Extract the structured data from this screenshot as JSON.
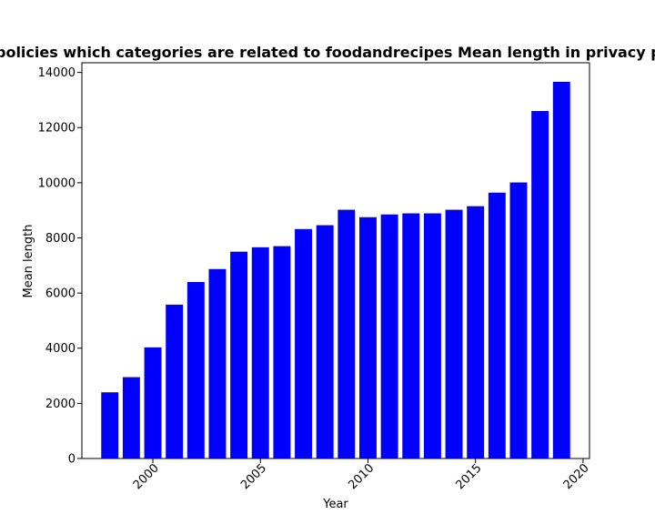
{
  "chart_data": {
    "type": "bar",
    "title": "Percentage of policies which categories are related to foodandrecipes Mean length in privacy policies by year",
    "xlabel": "Year",
    "ylabel": "Mean length",
    "x": [
      1998,
      1999,
      2000,
      2001,
      2002,
      2003,
      2004,
      2005,
      2006,
      2007,
      2008,
      2009,
      2010,
      2011,
      2012,
      2013,
      2014,
      2015,
      2016,
      2017,
      2018,
      2019
    ],
    "values": [
      2400,
      2950,
      4030,
      5580,
      6400,
      6870,
      7500,
      7660,
      7700,
      8320,
      8460,
      9020,
      8750,
      8850,
      8890,
      8890,
      9020,
      9150,
      9640,
      10010,
      12600,
      13660
    ],
    "xlim": [
      1996.7,
      2020.3
    ],
    "ylim": [
      0,
      14350
    ],
    "xticks": [
      "2000",
      "2005",
      "2010",
      "2015",
      "2020"
    ],
    "yticks": [
      "0",
      "2000",
      "4000",
      "6000",
      "8000",
      "10000",
      "12000",
      "14000"
    ],
    "bar_color": "#0000ff",
    "grid": false,
    "legend": "none"
  }
}
